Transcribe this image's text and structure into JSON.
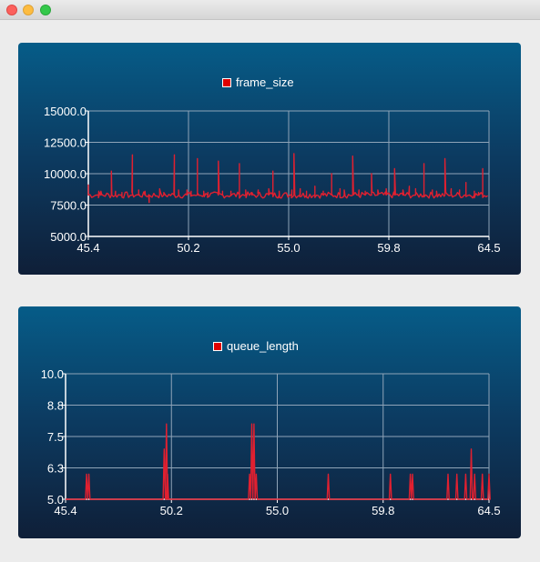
{
  "window": {
    "buttons": [
      "close",
      "minimize",
      "maximize"
    ]
  },
  "colors": {
    "series": "#e02030",
    "grid": "#8fa4b8",
    "axis": "#ffffff",
    "panel_top": "#065c88",
    "panel_bottom": "#0f1f38"
  },
  "chart_data": [
    {
      "type": "line",
      "legend": "top-center",
      "grid": true,
      "series": [
        {
          "name": "frame_size",
          "spikes": [
            [
              45.4,
              9100
            ],
            [
              45.9,
              8600
            ],
            [
              46.0,
              8600
            ],
            [
              46.5,
              10200
            ],
            [
              46.7,
              8600
            ],
            [
              47.0,
              8500
            ],
            [
              47.5,
              11500
            ],
            [
              47.8,
              8700
            ],
            [
              48.1,
              8600
            ],
            [
              48.3,
              7700
            ],
            [
              48.8,
              8800
            ],
            [
              49.0,
              8500
            ],
            [
              49.5,
              11500
            ],
            [
              49.7,
              8700
            ],
            [
              50.1,
              8700
            ],
            [
              50.3,
              8600
            ],
            [
              50.6,
              11200
            ],
            [
              50.9,
              8600
            ],
            [
              51.1,
              8500
            ],
            [
              51.6,
              11000
            ],
            [
              51.8,
              8600
            ],
            [
              52.2,
              8600
            ],
            [
              52.6,
              10800
            ],
            [
              52.9,
              8700
            ],
            [
              53.2,
              8500
            ],
            [
              53.5,
              8700
            ],
            [
              54.0,
              8800
            ],
            [
              54.2,
              10200
            ],
            [
              54.5,
              8600
            ],
            [
              55.1,
              8700
            ],
            [
              55.2,
              11600
            ],
            [
              55.5,
              8800
            ],
            [
              55.8,
              8600
            ],
            [
              56.2,
              9000
            ],
            [
              56.6,
              8600
            ],
            [
              57.0,
              10000
            ],
            [
              57.4,
              8800
            ],
            [
              57.6,
              8700
            ],
            [
              58.0,
              11400
            ],
            [
              58.3,
              8700
            ],
            [
              58.6,
              8600
            ],
            [
              58.9,
              10000
            ],
            [
              59.2,
              8700
            ],
            [
              59.6,
              8800
            ],
            [
              60.0,
              10400
            ],
            [
              60.4,
              8700
            ],
            [
              60.7,
              9000
            ],
            [
              61.0,
              8800
            ],
            [
              61.4,
              10800
            ],
            [
              61.8,
              8700
            ],
            [
              62.0,
              8600
            ],
            [
              62.4,
              11200
            ],
            [
              62.7,
              8800
            ],
            [
              63.1,
              8700
            ],
            [
              63.4,
              9300
            ],
            [
              63.8,
              8600
            ],
            [
              64.0,
              8500
            ],
            [
              64.2,
              10400
            ],
            [
              64.5,
              8700
            ]
          ],
          "baseline": 8300
        }
      ],
      "xlim": [
        45.4,
        64.5
      ],
      "ylim": [
        5000.0,
        15000.0
      ],
      "xticks": [
        "45.4",
        "50.2",
        "55.0",
        "59.8",
        "64.5"
      ],
      "yticks": [
        "5000.0",
        "7500.0",
        "10000.0",
        "12500.0",
        "15000.0"
      ]
    },
    {
      "type": "line",
      "legend": "top-center",
      "grid": true,
      "series": [
        {
          "name": "queue_length",
          "spikes": [
            [
              46.35,
              6.0
            ],
            [
              46.45,
              6.0
            ],
            [
              49.85,
              7.0
            ],
            [
              49.95,
              8.0
            ],
            [
              50.0,
              6.0
            ],
            [
              53.7,
              6.0
            ],
            [
              53.8,
              8.0
            ],
            [
              53.9,
              8.0
            ],
            [
              54.0,
              6.0
            ],
            [
              57.25,
              6.0
            ],
            [
              60.05,
              6.0
            ],
            [
              60.95,
              6.0
            ],
            [
              61.05,
              6.0
            ],
            [
              62.65,
              6.0
            ],
            [
              63.05,
              6.0
            ],
            [
              63.45,
              6.0
            ],
            [
              63.7,
              7.0
            ],
            [
              63.85,
              6.0
            ],
            [
              64.2,
              6.0
            ],
            [
              64.5,
              6.0
            ]
          ],
          "baseline": 5.0
        }
      ],
      "xlim": [
        45.4,
        64.5
      ],
      "ylim": [
        5.0,
        10.0
      ],
      "xticks": [
        "45.4",
        "50.2",
        "55.0",
        "59.8",
        "64.5"
      ],
      "yticks": [
        "5.0",
        "6.3",
        "7.5",
        "8.8",
        "10.0"
      ]
    }
  ]
}
